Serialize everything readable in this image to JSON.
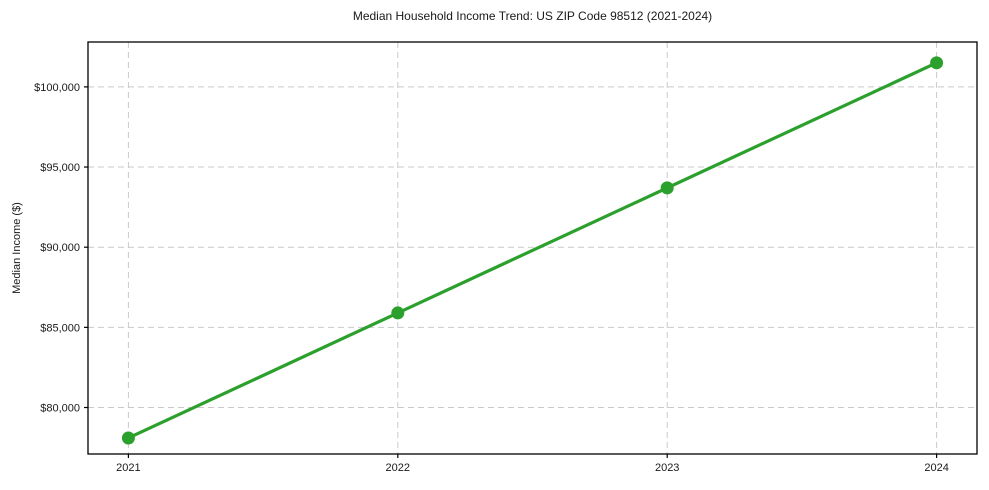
{
  "figure": {
    "background": "#ffffff"
  },
  "chart_data": {
    "type": "line",
    "title": "Median Household Income Trend: US ZIP Code 98512 (2021-2024)",
    "xlabel": "",
    "ylabel": "Median Income ($)",
    "categories": [
      "2021",
      "2022",
      "2023",
      "2024"
    ],
    "x": [
      2021,
      2022,
      2023,
      2024
    ],
    "series": [
      {
        "name": "Median Household Income",
        "values": [
          78100,
          85900,
          93700,
          101500
        ],
        "color": "#2ca02c",
        "marker": "circle"
      }
    ],
    "xlim": [
      2020.85,
      2024.15
    ],
    "ylim": [
      77100,
      102800
    ],
    "yticks": [
      80000,
      85000,
      90000,
      95000,
      100000
    ],
    "ytick_labels": [
      "$80,000",
      "$85,000",
      "$90,000",
      "$95,000",
      "$100,000"
    ],
    "grid": true,
    "grid_style": "dashed",
    "grid_color": "#c9c9c9",
    "axis_color": "#000000",
    "tick_label_color": "#1a1a1a",
    "legend_position": "none"
  }
}
